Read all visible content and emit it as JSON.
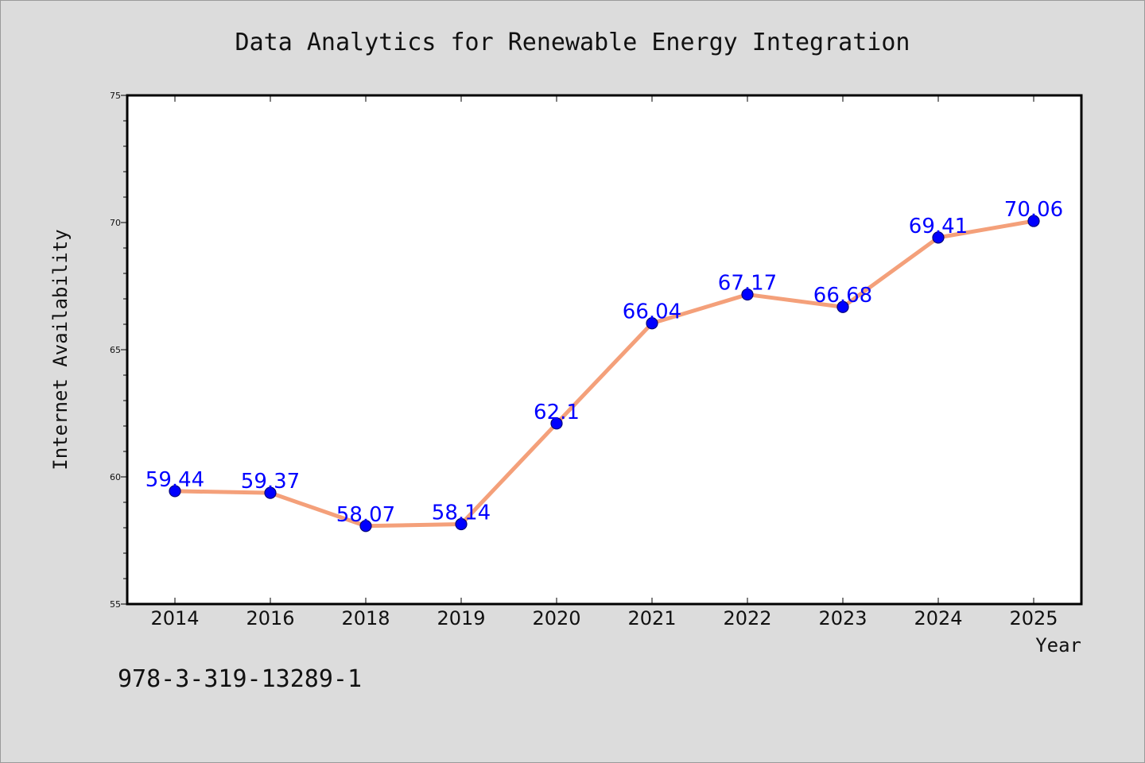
{
  "chart_data": {
    "type": "line",
    "title": "Data Analytics for Renewable Energy Integration",
    "xlabel": "Year",
    "ylabel": "Internet Availability",
    "categories": [
      "2014",
      "2016",
      "2018",
      "2019",
      "2020",
      "2021",
      "2022",
      "2023",
      "2024",
      "2025"
    ],
    "values": [
      59.44,
      59.37,
      58.07,
      58.14,
      62.1,
      66.04,
      67.17,
      66.68,
      69.41,
      70.06
    ],
    "data_labels": [
      "59.44",
      "59.37",
      "58.07",
      "58.14",
      "62.1",
      "66.04",
      "67.17",
      "66.68",
      "69.41",
      "70.06"
    ],
    "ylim": [
      55,
      75
    ],
    "yticks": [
      "55",
      "60",
      "65",
      "70",
      "75"
    ],
    "grid": false,
    "legend": "none"
  },
  "footer": {
    "isbn": "978-3-319-13289-1"
  },
  "colors": {
    "background": "#dcdcdc",
    "plot_background": "#ffffff",
    "line": "#f4a07a",
    "marker": "#0000ff",
    "data_label": "#0000ff",
    "axis": "#000000"
  }
}
